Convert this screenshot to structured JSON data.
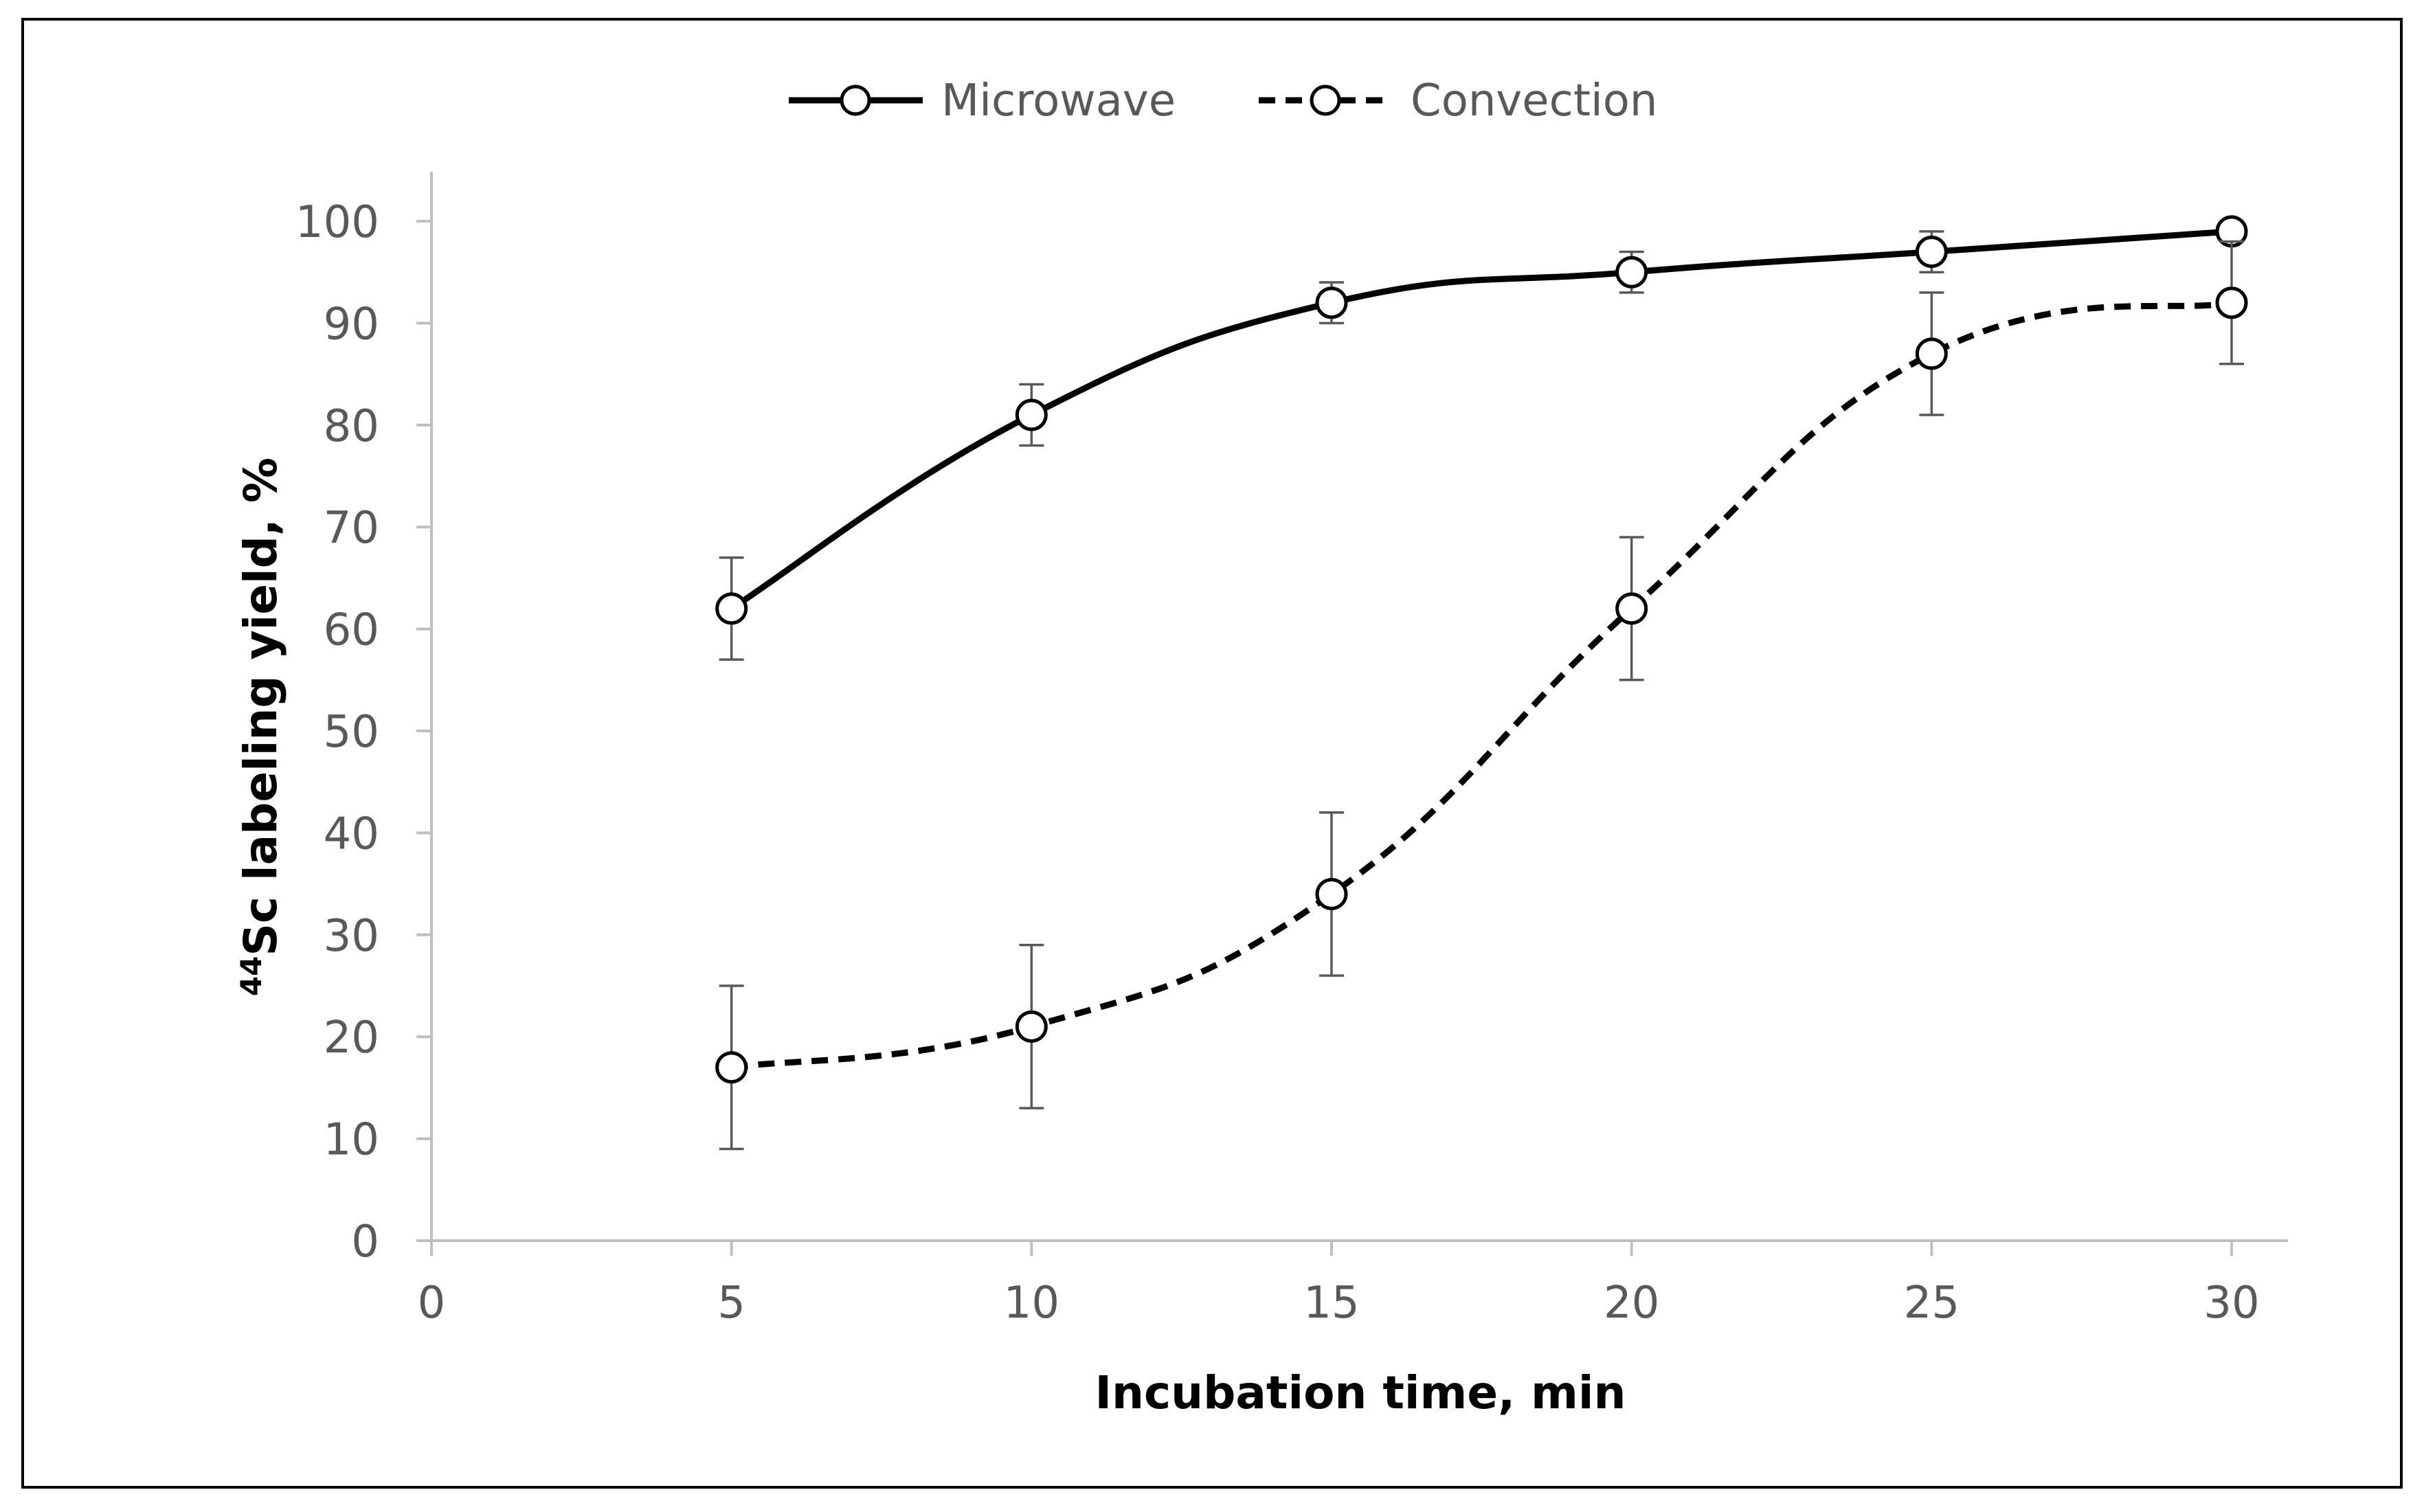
{
  "chart_data": {
    "type": "line",
    "title": "",
    "xlabel": "Incubation time, min",
    "ylabel_prefix": "44",
    "ylabel": "Sc labeling  yield, %",
    "xlim": [
      0,
      31
    ],
    "ylim": [
      0,
      105
    ],
    "xticks": [
      0,
      5,
      10,
      15,
      20,
      25,
      30
    ],
    "yticks": [
      0,
      10,
      20,
      30,
      40,
      50,
      60,
      70,
      80,
      90,
      100
    ],
    "grid": false,
    "legend_position": "top-center",
    "x": [
      5,
      10,
      15,
      20,
      25,
      30
    ],
    "series": [
      {
        "name": "Microwave",
        "line_style": "solid",
        "values": [
          62,
          81,
          92,
          95,
          97,
          99
        ],
        "error": [
          5,
          3,
          2,
          2,
          2,
          0
        ]
      },
      {
        "name": "Convection",
        "line_style": "dashed",
        "values": [
          17,
          21,
          34,
          62,
          87,
          92
        ],
        "error": [
          8,
          8,
          8,
          7,
          6,
          6
        ]
      }
    ],
    "colors": {
      "line": "#000000",
      "axis": "#bfbfbf",
      "tick_text": "#595959",
      "error_bar": "#595959",
      "border": "#000000"
    }
  }
}
